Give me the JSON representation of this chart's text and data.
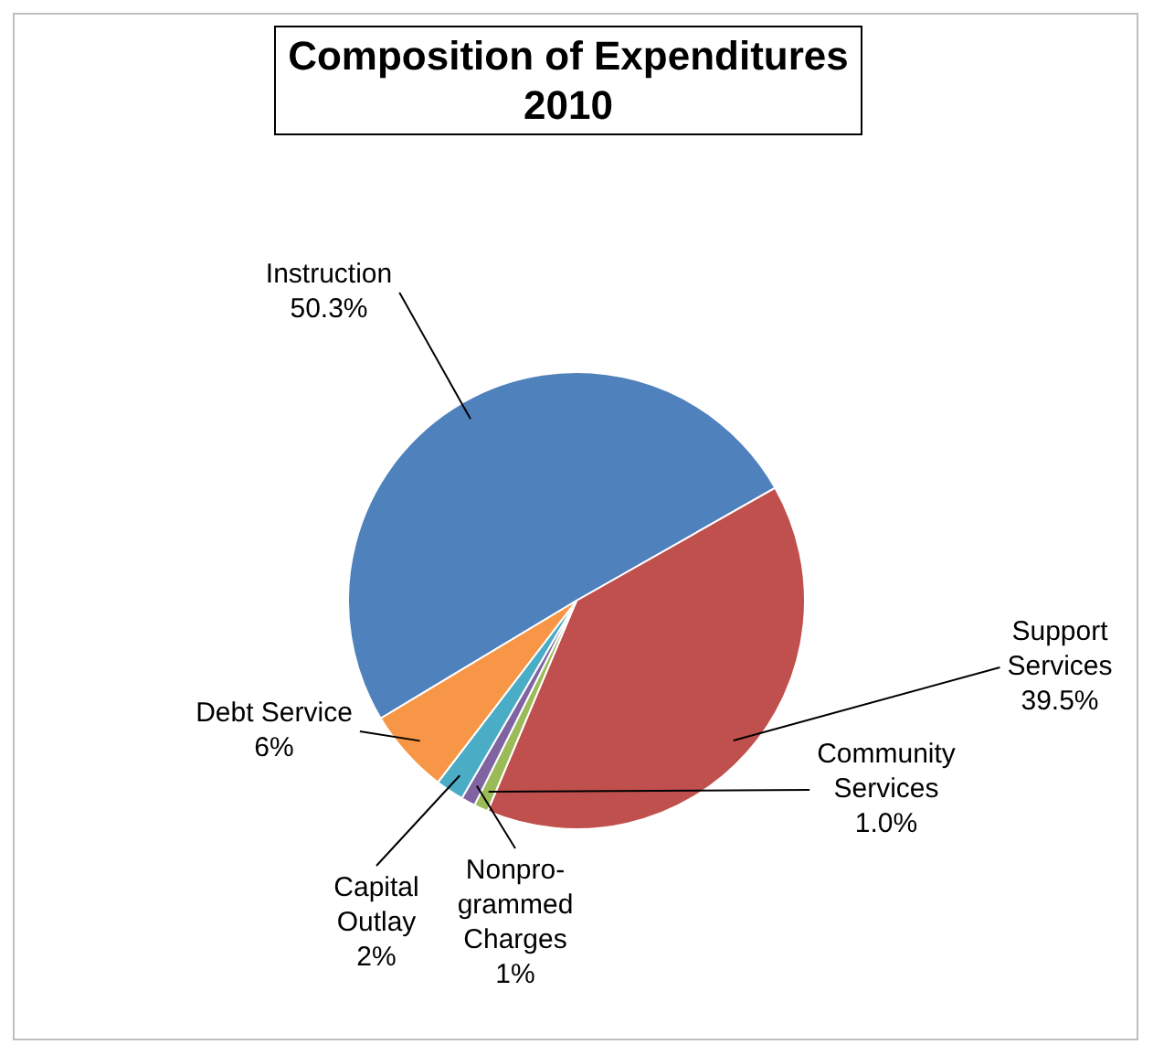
{
  "chart_data": {
    "type": "pie",
    "title": "Composition of Expenditures 2010",
    "categories": [
      "Instruction",
      "Support Services",
      "Community Services",
      "Nonpro-grammed Charges",
      "Capital Outlay",
      "Debt Service"
    ],
    "values": [
      50.3,
      39.5,
      1.0,
      1,
      2,
      6
    ],
    "value_labels": [
      "50.3%",
      "39.5%",
      "1.0%",
      "1%",
      "2%",
      "6%"
    ],
    "colors": [
      "#4f81bd",
      "#c0504d",
      "#9bbb59",
      "#8064a2",
      "#4bacc6",
      "#f79646"
    ],
    "legend": false
  }
}
